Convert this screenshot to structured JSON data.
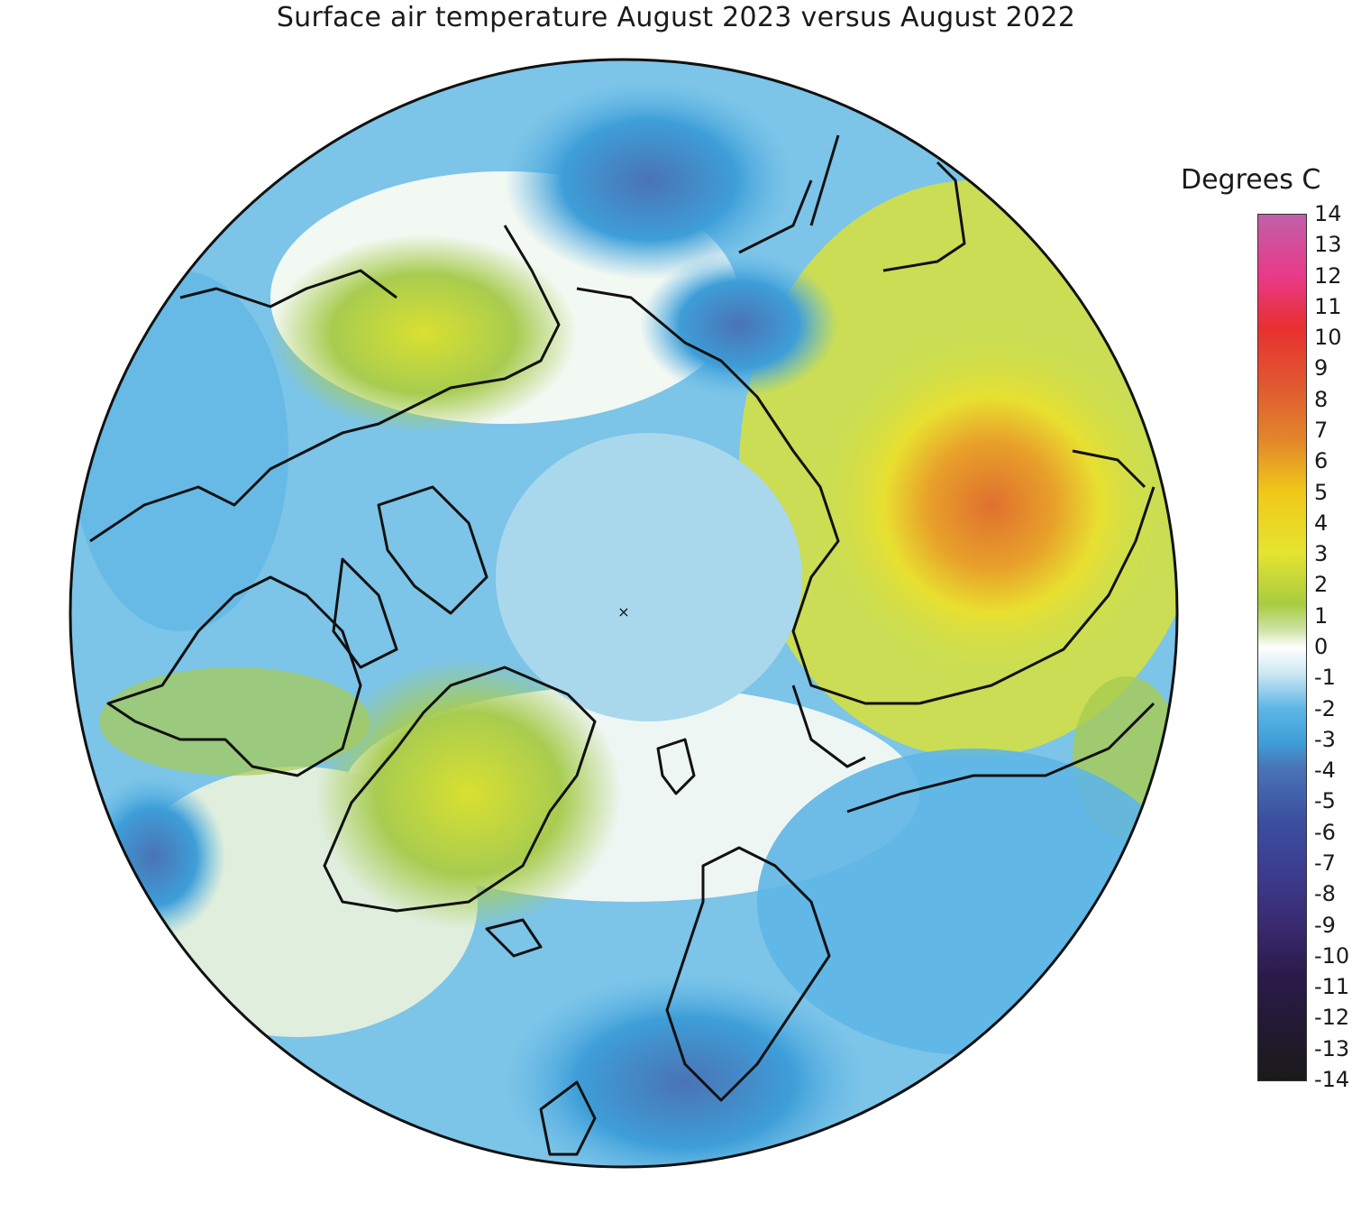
{
  "title": "Surface air temperature August 2023 versus August 2022",
  "legend": {
    "title": "Degrees C",
    "ticks": [
      "14",
      "13",
      "12",
      "11",
      "10",
      "9",
      "8",
      "7",
      "6",
      "5",
      "4",
      "3",
      "2",
      "1",
      "0",
      "-1",
      "-2",
      "-3",
      "-4",
      "-5",
      "-6",
      "-7",
      "-8",
      "-9",
      "-10",
      "-11",
      "-12",
      "-13",
      "-14"
    ],
    "range": [
      -14,
      14
    ],
    "colors": {
      "max": "#c060a8",
      "warm": "#e2862a",
      "neutral": "#ffffff",
      "cool": "#3e9ed8",
      "min": "#1a1a1a"
    }
  },
  "chart_data": {
    "type": "heatmap",
    "projection": "polar stereographic, north pole centered",
    "title": "Surface air temperature August 2023 versus August 2022",
    "colorbar_label": "Degrees C",
    "colorbar_range": [
      -14,
      14
    ]
  }
}
